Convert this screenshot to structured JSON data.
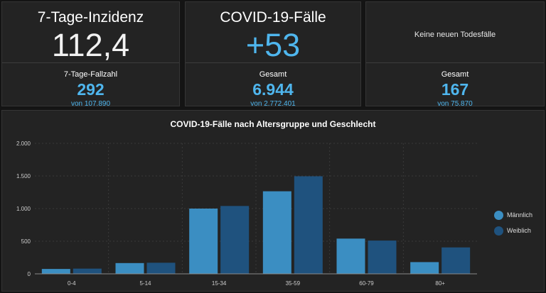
{
  "cards": [
    {
      "title": "7-Tage-Inzidenz",
      "value": "112,4",
      "sub_label": "7-Tage-Fallzahl",
      "sub_value": "292",
      "sub_small": "von 107.890"
    },
    {
      "title": "COVID-19-Fälle",
      "value": "+53",
      "sub_label": "Gesamt",
      "sub_value": "6.944",
      "sub_small": "von 2.772.401"
    },
    {
      "message": "Keine neuen Todesfälle",
      "sub_label": "Gesamt",
      "sub_value": "167",
      "sub_small": "von 75.870"
    }
  ],
  "colors": {
    "male": "#3b8ec2",
    "female": "#1f527e",
    "accent": "#4fb6ee",
    "background": "#141414",
    "panel": "#232323"
  },
  "chart_data": {
    "type": "bar",
    "title": "COVID-19-Fälle nach Altersgruppe und Geschlecht",
    "categories": [
      "0-4",
      "5-14",
      "15-34",
      "35-59",
      "60-79",
      "80+"
    ],
    "series": [
      {
        "name": "Männlich",
        "values": [
          75,
          165,
          1000,
          1265,
          540,
          180
        ]
      },
      {
        "name": "Weiblich",
        "values": [
          80,
          170,
          1040,
          1495,
          510,
          405
        ]
      }
    ],
    "ylim": [
      0,
      2000
    ],
    "yticks": [
      0,
      500,
      1000,
      1500,
      2000
    ],
    "ytick_labels": [
      "0",
      "500",
      "1.000",
      "1.500",
      "2.000"
    ],
    "grid": true,
    "legend_position": "right"
  }
}
